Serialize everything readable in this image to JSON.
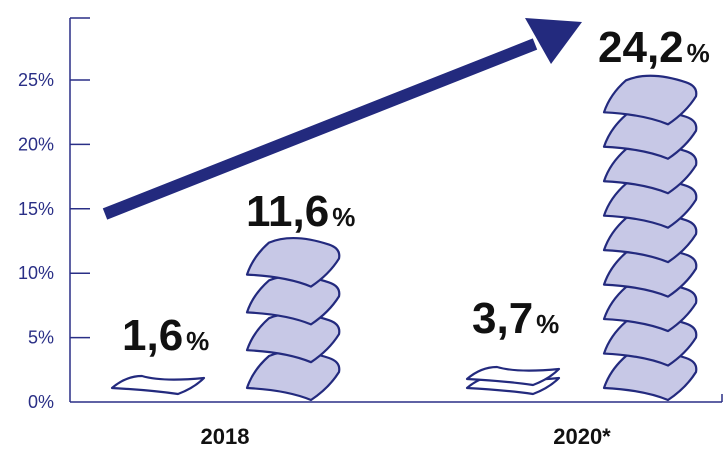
{
  "chart_data": {
    "type": "bar",
    "categories": [
      "2018",
      "2020*"
    ],
    "series": [
      {
        "values": [
          1.6,
          3.7
        ]
      },
      {
        "values": [
          11.6,
          24.2
        ]
      }
    ],
    "value_labels": [
      {
        "num": "1,6",
        "pct": "%"
      },
      {
        "num": "11,6",
        "pct": "%"
      },
      {
        "num": "3,7",
        "pct": "%"
      },
      {
        "num": "24,2",
        "pct": "%"
      }
    ],
    "yticks": [
      "0%",
      "5%",
      "10%",
      "15%",
      "20%",
      "25%"
    ],
    "ytick_values": [
      0,
      5,
      10,
      15,
      20,
      25
    ],
    "ylim": [
      0,
      30
    ],
    "grid": false,
    "trend_arrow": true,
    "colors": {
      "axis": "#2a2f86",
      "arrow": "#232a7e",
      "pile_fill": "#c7c8e6",
      "pile_stroke": "#232a7e",
      "text": "#111111"
    }
  }
}
